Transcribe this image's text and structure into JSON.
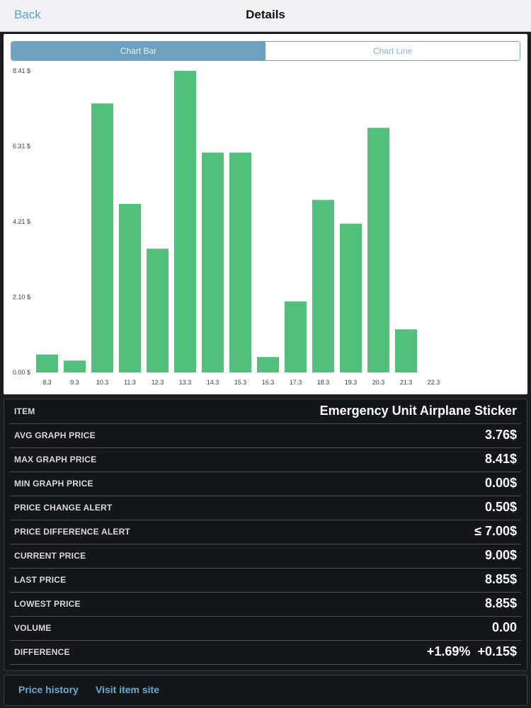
{
  "nav": {
    "back_label": "Back",
    "title": "Details"
  },
  "tabs": [
    {
      "label": "Chart Bar",
      "active": true
    },
    {
      "label": "Chart Line",
      "active": false
    }
  ],
  "colors": {
    "bar": "#52bf7d",
    "accent": "#6fa0bf",
    "link": "#6aa9d0"
  },
  "chart_data": {
    "type": "bar",
    "categories": [
      "8.3",
      "9.3",
      "10.3",
      "11.3",
      "12.3",
      "13.3",
      "14.3",
      "15.3",
      "16.3",
      "17.3",
      "18.3",
      "19.3",
      "20.3",
      "21.3",
      "22.3"
    ],
    "values": [
      0.5,
      0.33,
      7.5,
      4.7,
      3.45,
      8.41,
      6.13,
      6.13,
      0.43,
      1.98,
      4.81,
      4.15,
      6.82,
      1.2,
      null
    ],
    "y_ticks": [
      "0.00 $",
      "2.10 $",
      "4.21 $",
      "6.31 $",
      "8.41 $"
    ],
    "ylim": [
      0,
      8.41
    ],
    "title": "",
    "xlabel": "",
    "ylabel": "",
    "grid": false
  },
  "info": [
    {
      "label": "ITEM",
      "value": "Emergency Unit Airplane Sticker"
    },
    {
      "label": "AVG GRAPH PRICE",
      "value": "3.76$"
    },
    {
      "label": "MAX GRAPH PRICE",
      "value": "8.41$"
    },
    {
      "label": "MIN GRAPH PRICE",
      "value": "0.00$"
    },
    {
      "label": "PRICE CHANGE ALERT",
      "value": "0.50$"
    },
    {
      "label": "PRICE DIFFERENCE ALERT",
      "value": "≤ 7.00$"
    },
    {
      "label": "CURRENT PRICE",
      "value": "9.00$"
    },
    {
      "label": "LAST PRICE",
      "value": "8.85$"
    },
    {
      "label": "LOWEST PRICE",
      "value": "8.85$"
    },
    {
      "label": "VOLUME",
      "value": "0.00"
    },
    {
      "label": "DIFFERENCE",
      "value": "+1.69%  +0.15$"
    }
  ],
  "footer": {
    "price_history": "Price history",
    "visit_site": "Visit item site"
  }
}
